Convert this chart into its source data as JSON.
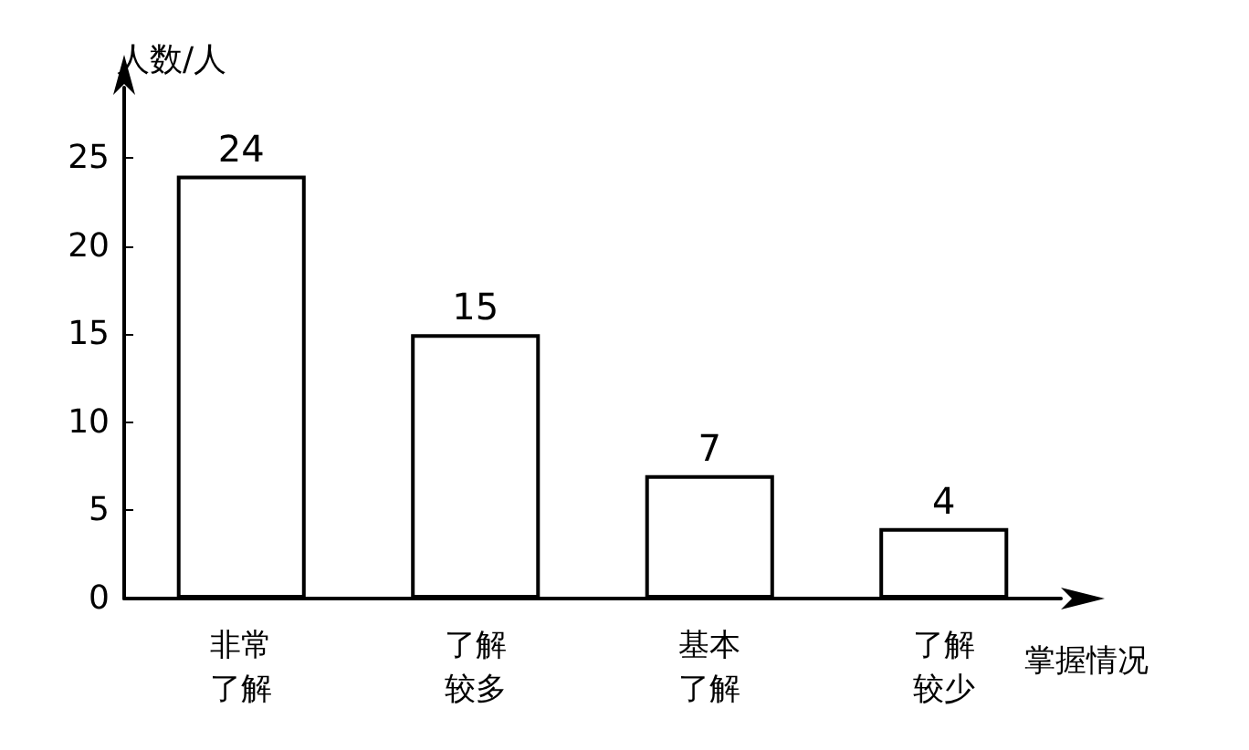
{
  "chart_data": {
    "type": "bar",
    "ylabel": "人数/人",
    "xlabel": "掌握情况",
    "categories": [
      "非常了解",
      "了解较多",
      "基本了解",
      "了解较少"
    ],
    "values": [
      24,
      15,
      7,
      4
    ],
    "color": "#ffffff",
    "ylim": [
      0,
      29
    ],
    "yticks": [
      0,
      5,
      10,
      15,
      20,
      25
    ],
    "data_labels": true,
    "grid": false
  }
}
